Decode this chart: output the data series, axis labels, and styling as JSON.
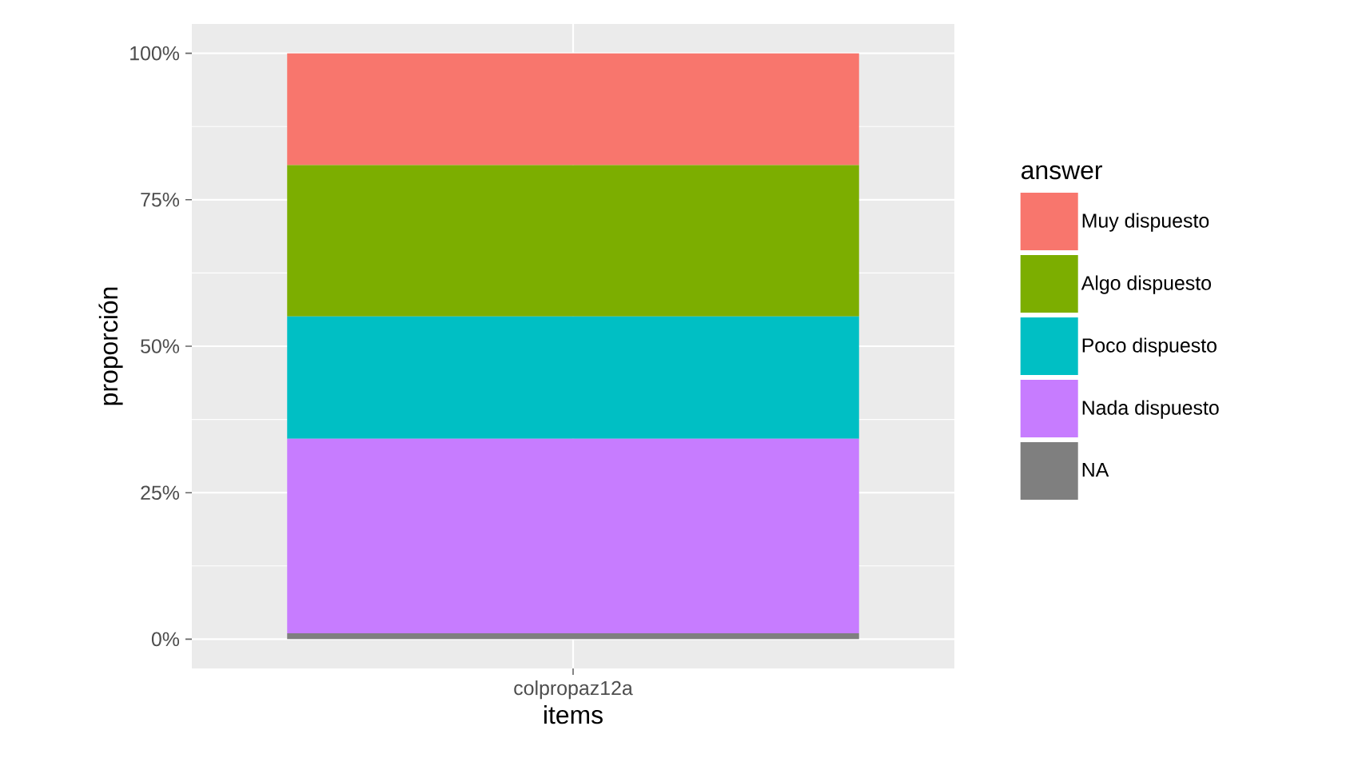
{
  "chart_data": {
    "type": "bar",
    "stacked": true,
    "xlabel": "items",
    "ylabel": "proporción",
    "legend_title": "answer",
    "categories": [
      "colpropaz12a"
    ],
    "series": [
      {
        "name": "NA",
        "color": "#7f7f7f",
        "values": [
          1.0
        ]
      },
      {
        "name": "Nada dispuesto",
        "color": "#c77cff",
        "values": [
          33.2
        ]
      },
      {
        "name": "Poco dispuesto",
        "color": "#00bfc4",
        "values": [
          20.9
        ]
      },
      {
        "name": "Algo dispuesto",
        "color": "#7cae00",
        "values": [
          25.8
        ]
      },
      {
        "name": "Muy dispuesto",
        "color": "#f8766d",
        "values": [
          19.1
        ]
      }
    ],
    "ylim": [
      -5,
      105
    ],
    "yticks": [
      {
        "value": 0,
        "label": "0%"
      },
      {
        "value": 25,
        "label": "25%"
      },
      {
        "value": 50,
        "label": "50%"
      },
      {
        "value": 75,
        "label": "75%"
      },
      {
        "value": 100,
        "label": "100%"
      }
    ],
    "grid": true,
    "legend": "right"
  }
}
